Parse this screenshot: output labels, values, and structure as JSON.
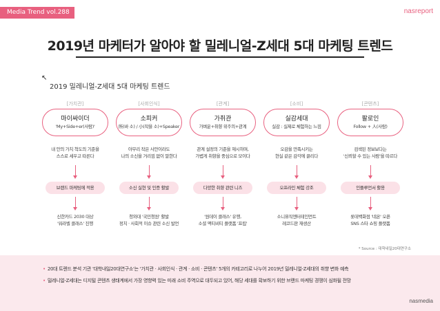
{
  "header": {
    "tag": "Media Trend vol.288",
    "brand": "nasreport",
    "title": "2019년 마케터가 알아야 할 밀레니얼-Z세대 5대 마케팅 트렌드"
  },
  "section": {
    "subtitle": "2019 밀레니얼-Z세대 5대 마케팅 트렌드"
  },
  "columns": [
    {
      "category": "[가치관]",
      "title": "마이싸이더",
      "subtitle": "'My+Side+er(사람)'",
      "desc": [
        "내 안의 가치 척도의 기준을",
        "스스로 세우고 따른다"
      ],
      "action": "브랜드 마케팅에 적용",
      "example": [
        "신한카드 2030 대상",
        "'워라벨 클래스' 진행"
      ]
    },
    {
      "category": "[사회인식]",
      "title": "소피커",
      "subtitle": "所(바 소) / 小(작을 소)+Speaker",
      "desc": [
        "아무리 작은 사안이라도",
        "나의 소신을 거리낌 없이 말한다"
      ],
      "action": "소신 실현 및 인증 활발",
      "example": [
        "청와대 '국민청원' 활발",
        "정치 · 사회적 이슈 관련 소신 발언"
      ]
    },
    {
      "category": "[관계]",
      "title": "가취관",
      "subtitle": "가벼운+취향 위주의+관계",
      "desc": [
        "관계 설정의 기준을 재시하며,",
        "가볍게 취향을 중심으로 모이다"
      ],
      "action": "다양한 취향 관련 니즈",
      "example": [
        "'원데이 클래스' 유행,",
        "소셜 액티비티 플랫폼 '프립'"
      ]
    },
    {
      "category": "[소비]",
      "title": "실감세대",
      "subtitle": "실감 : 실제로 체험하는 느낌",
      "desc": [
        "오감을 만족시키는",
        "현실 같은 감각에 끌리다"
      ],
      "action": "오프라인 체험 강조",
      "example": [
        "소니뮤직엔터테인먼트",
        "레코드판 재생산"
      ]
    },
    {
      "category": "[콘텐츠]",
      "title": "팔로인",
      "subtitle": "Follow + 人(사람)",
      "desc": [
        "검색된 정보보다는",
        "'신뢰할 수 있는 사람'을 따르다"
      ],
      "action": "인플루언서 활용",
      "example": [
        "롯데백화점 '네온' 오픈",
        "SNS 스타 쇼핑 플랫폼"
      ]
    }
  ],
  "source": "* Source : 대학내일20대연구소",
  "bullets": [
    "20대 트렌드 분석 기관 '대학내일20대연구소'는 '가치관 · 사회인식 · 관계 · 소비 · 콘텐츠' 5개의 카테고리로 나누어 2019년 밀레니얼-Z세대의 취향 변화 예측",
    "밀레니얼-Z세대는 디지털 콘텐츠 생태계에서 가장 영향력 있는 미래 소비 주역으로 대두되고 있어, 해당 세대를 확보하기 위한 브랜드 마케팅 경쟁이 심화될 전망"
  ],
  "footer": {
    "brand": "nasmedia"
  }
}
